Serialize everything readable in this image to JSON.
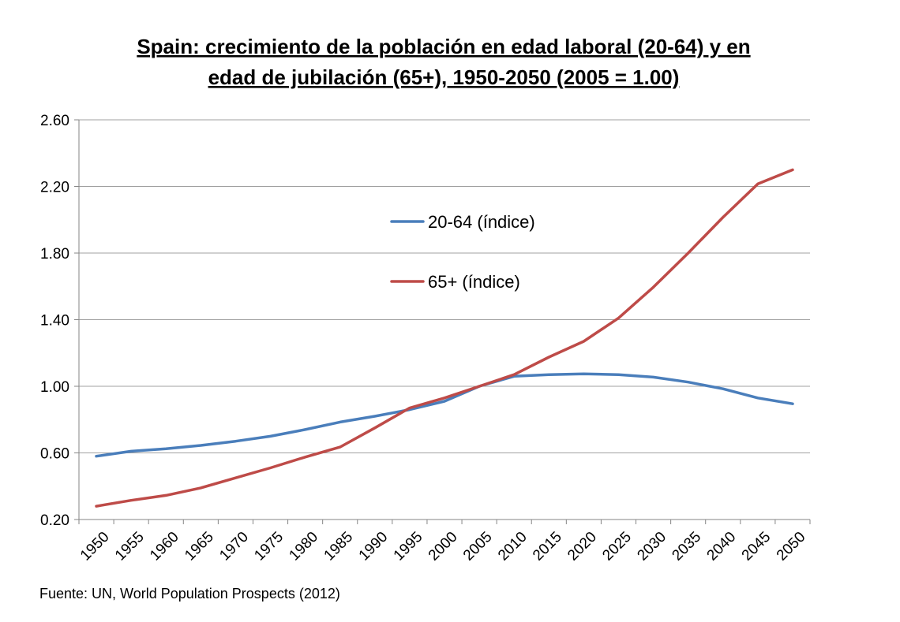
{
  "title_line1": "Spain: crecimiento de la población en edad laboral (20-64) y en",
  "title_line2": "edad de jubilación (65+), 1950-2050 (2005 = 1.00)",
  "source": "Fuente: UN, World Population Prospects (2012)",
  "colors": {
    "series_20_64": "#4a7ebb",
    "series_65": "#be4b48",
    "grid": "#a0a0a0",
    "axis": "#868686"
  },
  "chart_data": {
    "type": "line",
    "categories": [
      "1950",
      "1955",
      "1960",
      "1965",
      "1970",
      "1975",
      "1980",
      "1985",
      "1990",
      "1995",
      "2000",
      "2005",
      "2010",
      "2015",
      "2020",
      "2025",
      "2030",
      "2035",
      "2040",
      "2045",
      "2050"
    ],
    "series": [
      {
        "name": "20-64 (índice)",
        "color": "#4a7ebb",
        "values": [
          0.58,
          0.61,
          0.625,
          0.645,
          0.67,
          0.7,
          0.74,
          0.785,
          0.82,
          0.86,
          0.91,
          1.0,
          1.06,
          1.07,
          1.075,
          1.07,
          1.055,
          1.025,
          0.985,
          0.93,
          0.895
        ]
      },
      {
        "name": "65+ (índice)",
        "color": "#be4b48",
        "values": [
          0.28,
          0.315,
          0.345,
          0.39,
          0.45,
          0.51,
          0.575,
          0.635,
          0.75,
          0.87,
          0.93,
          1.0,
          1.07,
          1.175,
          1.27,
          1.41,
          1.595,
          1.8,
          2.015,
          2.215,
          2.3
        ]
      }
    ],
    "y_ticks": [
      "0.20",
      "0.60",
      "1.00",
      "1.40",
      "1.80",
      "2.20",
      "2.60"
    ],
    "ylim": [
      0.2,
      2.6
    ],
    "grid": true,
    "legend_position": "center"
  }
}
